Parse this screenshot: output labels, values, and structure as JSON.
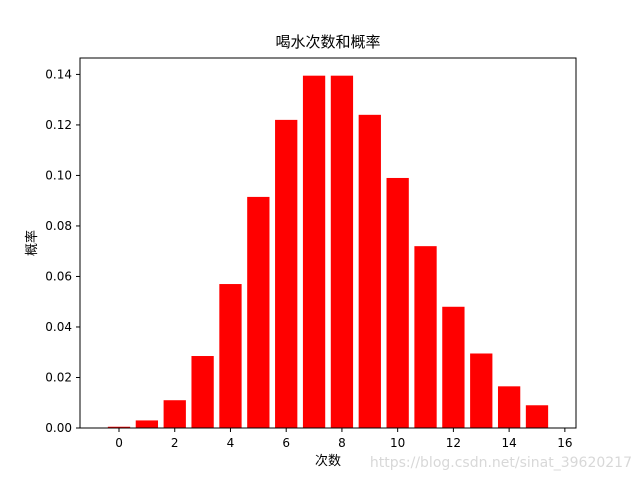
{
  "chart_data": {
    "type": "bar",
    "title": "喝水次数和概率",
    "xlabel": "次数",
    "ylabel": "概率",
    "x": [
      0,
      1,
      2,
      3,
      4,
      5,
      6,
      7,
      8,
      9,
      10,
      11,
      12,
      13,
      14,
      15
    ],
    "values": [
      0.0005,
      0.003,
      0.011,
      0.0285,
      0.057,
      0.0915,
      0.122,
      0.1395,
      0.1395,
      0.124,
      0.099,
      0.072,
      0.048,
      0.0295,
      0.0165,
      0.009
    ],
    "xlim": [
      -1.4,
      16.4
    ],
    "ylim": [
      0,
      0.1465
    ],
    "xticks": [
      0,
      2,
      4,
      6,
      8,
      10,
      12,
      14,
      16
    ],
    "yticks": [
      0.0,
      0.02,
      0.04,
      0.06,
      0.08,
      0.1,
      0.12,
      0.14
    ],
    "bar_color": "#ff0000",
    "grid": false
  },
  "watermark": "https://blog.csdn.net/sinat_39620217"
}
